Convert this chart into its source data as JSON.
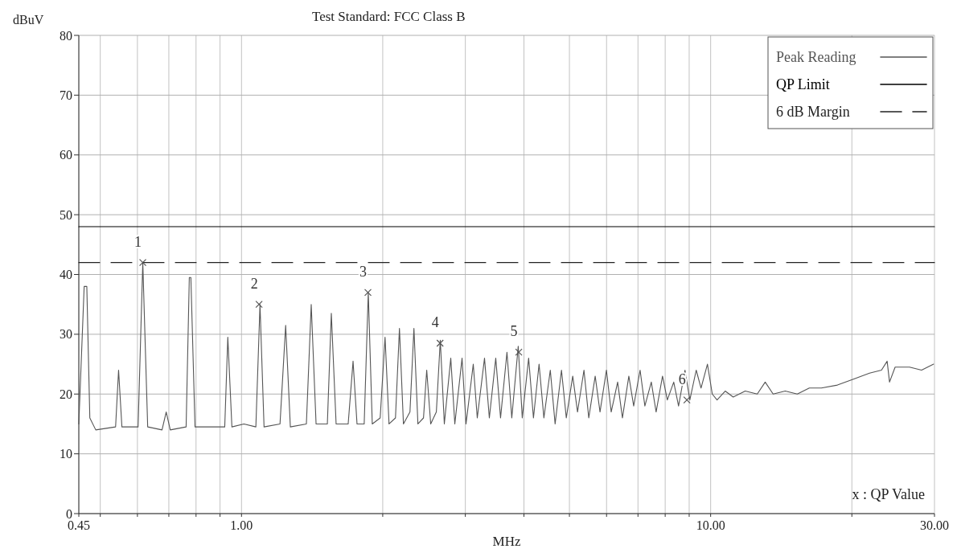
{
  "chart_data": {
    "type": "line",
    "title": "Test Standard: FCC Class B",
    "ylabel": "dBuV",
    "xlabel": "MHz",
    "log": "x",
    "grid": true,
    "legend": "top right",
    "xlim": [
      0.45,
      30
    ],
    "xticks": [
      {
        "value": 0.45,
        "label": "0.45"
      },
      {
        "value": 0.5,
        "label": null
      },
      {
        "value": 0.6,
        "label": null
      },
      {
        "value": 0.7,
        "label": null
      },
      {
        "value": 0.8,
        "label": null
      },
      {
        "value": 0.9,
        "label": null
      },
      {
        "value": 1,
        "label": "1.00"
      },
      {
        "value": 2,
        "label": null
      },
      {
        "value": 3,
        "label": null
      },
      {
        "value": 4,
        "label": null
      },
      {
        "value": 5,
        "label": null
      },
      {
        "value": 6,
        "label": null
      },
      {
        "value": 7,
        "label": null
      },
      {
        "value": 8,
        "label": null
      },
      {
        "value": 9,
        "label": null
      },
      {
        "value": 10,
        "label": "10.00"
      },
      {
        "value": 20,
        "label": null
      },
      {
        "value": 30,
        "label": "30.00"
      }
    ],
    "ylim": [
      0,
      80
    ],
    "yticks": [
      0,
      10,
      20,
      30,
      40,
      50,
      60,
      70,
      80
    ],
    "series": [
      {
        "name": "Peak Reading",
        "color": "#555555",
        "line_style": "solid",
        "x": [
          0.45,
          0.462,
          0.468,
          0.475,
          0.489,
          0.539,
          0.547,
          0.556,
          0.602,
          0.616,
          0.631,
          0.677,
          0.691,
          0.705,
          0.762,
          0.774,
          0.78,
          0.796,
          0.871,
          0.921,
          0.935,
          0.954,
          1.012,
          1.073,
          1.095,
          1.117,
          1.208,
          1.242,
          1.271,
          1.375,
          1.408,
          1.442,
          1.524,
          1.554,
          1.591,
          1.688,
          1.729,
          1.763,
          1.826,
          1.863,
          1.9,
          1.975,
          2.023,
          2.063,
          2.129,
          2.171,
          2.214,
          2.286,
          2.331,
          2.377,
          2.443,
          2.482,
          2.531,
          2.602,
          2.653,
          2.706,
          2.793,
          2.849,
          2.952,
          3.01,
          3.119,
          3.181,
          3.296,
          3.375,
          3.483,
          3.566,
          3.68,
          3.768,
          3.889,
          3.967,
          4.093,
          4.191,
          4.308,
          4.411,
          4.552,
          4.661,
          4.809,
          4.924,
          5.082,
          5.203,
          5.37,
          5.498,
          5.674,
          5.81,
          5.996,
          6.138,
          6.335,
          6.486,
          6.693,
          6.854,
          7.073,
          7.241,
          7.473,
          7.652,
          7.896,
          8.085,
          8.343,
          8.543,
          8.817,
          9.029,
          9.316,
          9.539,
          9.844,
          10.08,
          10.32,
          10.74,
          11.17,
          11.85,
          12.57,
          13.07,
          13.59,
          14.42,
          15.3,
          16.23,
          17.22,
          18.63,
          20.15,
          21.81,
          23.13,
          23.78,
          24.06,
          24.73,
          26.54,
          28.16,
          29.87
        ],
        "values": [
          15,
          38,
          38,
          16,
          14,
          14.5,
          24,
          14.5,
          14.5,
          42,
          14.5,
          14,
          17,
          14,
          14.5,
          39.5,
          39.5,
          14.5,
          14.5,
          14.5,
          29.5,
          14.5,
          15,
          14.5,
          35,
          14.5,
          15,
          31.5,
          14.5,
          15,
          35,
          15,
          15,
          33.5,
          15,
          15,
          25.5,
          15,
          15,
          37,
          15,
          16,
          29.5,
          15,
          16,
          31,
          15,
          17,
          31,
          15,
          16,
          24,
          15,
          17,
          29,
          15,
          26,
          15,
          26,
          15,
          25,
          16,
          26,
          16,
          26,
          16,
          27,
          16,
          28,
          16,
          26,
          16,
          25,
          16,
          24,
          15,
          24,
          16,
          23,
          17,
          24,
          16,
          23,
          17,
          24,
          17,
          22,
          16,
          23,
          18,
          24,
          18,
          22,
          17,
          23,
          19,
          22,
          18,
          24,
          19,
          24,
          21,
          25,
          20,
          19,
          20.5,
          19.5,
          20.5,
          20,
          22,
          20,
          20.5,
          20,
          21,
          21,
          21.5,
          22.5,
          23.5,
          24,
          25.5,
          22,
          24.5,
          24.5,
          24,
          25
        ]
      },
      {
        "name": "QP Limit",
        "color": "#000000",
        "line_style": "solid",
        "x": [
          0.45,
          30
        ],
        "values": [
          48,
          48
        ]
      },
      {
        "name": "6 dB Margin",
        "color": "#222222",
        "line_style": "dashed",
        "x": [
          0.45,
          30
        ],
        "values": [
          42,
          42
        ]
      },
      {
        "type": "scatter",
        "color": "#555555",
        "marker": "cross",
        "x": [
          0.616,
          1.09,
          1.86,
          2.65,
          3.9,
          8.9
        ],
        "values": [
          42,
          35,
          37,
          28.5,
          27,
          19
        ]
      }
    ],
    "annotations": [
      {
        "text": "1",
        "x": 0.616,
        "y": 42
      },
      {
        "text": "2",
        "x": 1.09,
        "y": 35
      },
      {
        "text": "3",
        "x": 1.86,
        "y": 37
      },
      {
        "text": "4",
        "x": 2.65,
        "y": 28.5
      },
      {
        "text": "5",
        "x": 3.9,
        "y": 27
      },
      {
        "text": "6",
        "x": 8.9,
        "y": 19
      },
      "x : QP Value"
    ]
  }
}
